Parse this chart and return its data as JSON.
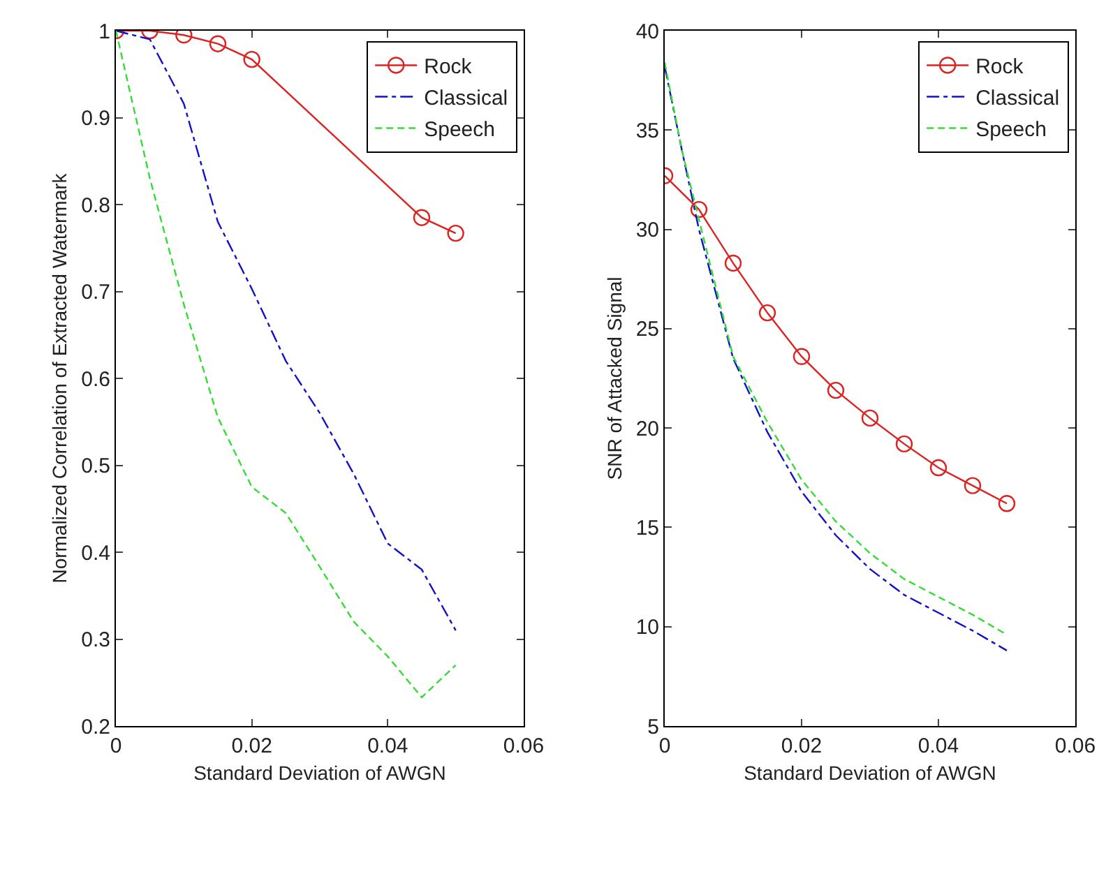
{
  "chart_data": [
    {
      "type": "line",
      "xlabel": "Standard Deviation of AWGN",
      "ylabel": "Normalized Correlation of Extracted Watermark",
      "xlim": [
        0,
        0.06
      ],
      "xticks": [
        0,
        0.02,
        0.04,
        0.06
      ],
      "ylim": [
        0.2,
        1
      ],
      "yticks": [
        0.2,
        0.3,
        0.4,
        0.5,
        0.6,
        0.7,
        0.8,
        0.9,
        1
      ],
      "grid": false,
      "legend": "top right",
      "x": [
        0,
        0.005,
        0.01,
        0.015,
        0.02,
        0.025,
        0.03,
        0.035,
        0.04,
        0.045,
        0.05
      ],
      "series": [
        {
          "name": "Rock",
          "color": "#dd2222",
          "marker": "circle",
          "line_style": "solid",
          "values": [
            1,
            1,
            0.995,
            0.985,
            0.967,
            null,
            null,
            null,
            null,
            0.785,
            0.767
          ]
        },
        {
          "name": "Classical",
          "color": "#1111cc",
          "marker": "none",
          "line_style": "dashdot",
          "values": [
            1,
            0.99,
            0.916,
            0.78,
            0.703,
            0.62,
            0.56,
            0.49,
            0.41,
            0.38,
            0.31
          ]
        },
        {
          "name": "Speech",
          "color": "#33dd33",
          "marker": "none",
          "line_style": "dashed",
          "values": [
            1,
            0.83,
            0.685,
            0.555,
            0.475,
            0.445,
            0.383,
            0.32,
            0.28,
            0.233,
            0.27
          ]
        }
      ]
    },
    {
      "type": "line",
      "xlabel": "Standard Deviation of AWGN",
      "ylabel": "SNR of Attacked Signal",
      "xlim": [
        0,
        0.06
      ],
      "xticks": [
        0,
        0.02,
        0.04,
        0.06
      ],
      "ylim": [
        5,
        40
      ],
      "yticks": [
        5,
        10,
        15,
        20,
        25,
        30,
        35,
        40
      ],
      "grid": false,
      "legend": "top right",
      "series": [
        {
          "name": "Rock",
          "color": "#dd2222",
          "marker": "circle",
          "line_style": "solid",
          "x": [
            0,
            0.005,
            0.01,
            0.015,
            0.02,
            0.025,
            0.03,
            0.035,
            0.04,
            0.045,
            0.05
          ],
          "values": [
            32.7,
            31.0,
            28.3,
            25.8,
            23.6,
            21.9,
            20.5,
            19.2,
            18.0,
            17.1,
            16.2
          ]
        },
        {
          "name": "Classical",
          "color": "#1111cc",
          "marker": "none",
          "line_style": "dashdot",
          "x": [
            0,
            0.0025,
            0.005,
            0.01,
            0.015,
            0.02,
            0.025,
            0.03,
            0.035,
            0.04,
            0.045,
            0.05
          ],
          "values": [
            38.2,
            34,
            30.0,
            23.5,
            19.8,
            16.8,
            14.6,
            12.9,
            11.6,
            10.7,
            9.8,
            8.8
          ]
        },
        {
          "name": "Speech",
          "color": "#33dd33",
          "marker": "none",
          "line_style": "dashed",
          "x": [
            0,
            0.0025,
            0.005,
            0.01,
            0.015,
            0.02,
            0.025,
            0.03,
            0.035,
            0.04,
            0.045,
            0.05
          ],
          "values": [
            38.4,
            34,
            30.5,
            23.6,
            20.3,
            17.4,
            15.3,
            13.7,
            12.4,
            11.5,
            10.6,
            9.6
          ]
        }
      ]
    }
  ]
}
